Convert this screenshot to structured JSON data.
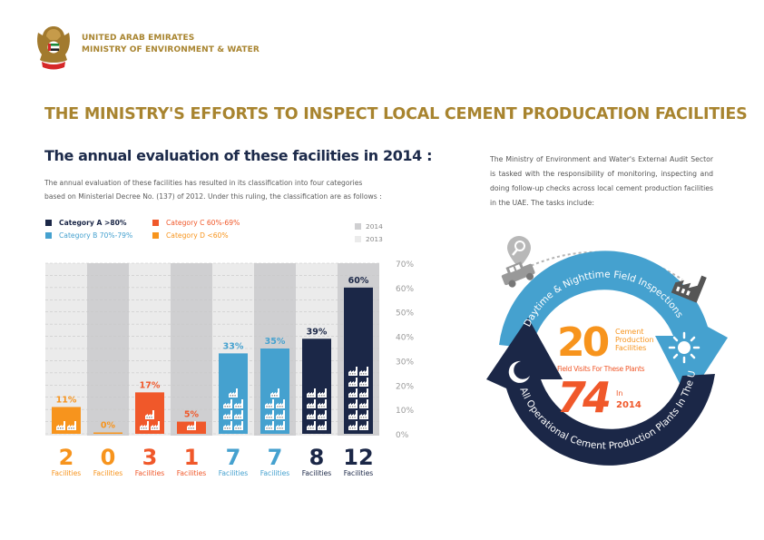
{
  "header": {
    "org_line1": "UNITED ARAB EMIRATES",
    "org_line2": "MINISTRY OF ENVIRONMENT & WATER",
    "logo_icon": "uae-emblem-falcon-icon"
  },
  "title": "THE MINISTRY'S EFFORTS TO INSPECT LOCAL CEMENT PRODUCATION FACILITIES",
  "left": {
    "subtitle": "The annual evaluation of these facilities in 2014 :",
    "description_line1": "The annual evaluation of these facilities has resulted in its classification into four categories",
    "description_line2": "based on Ministerial Decree No. (137) of 2012. Under this ruling, the classification are as follows :"
  },
  "legend": {
    "categories": [
      {
        "label": "Category A  >80%",
        "color": "#1b2747"
      },
      {
        "label": "Category B  70%-79%",
        "color": "#45a1cf"
      },
      {
        "label": "Category C  60%-69%",
        "color": "#f0582a"
      },
      {
        "label": "Category D  <60%",
        "color": "#f7941d"
      }
    ],
    "years": [
      {
        "label": "2014",
        "color": "#cfcfd1"
      },
      {
        "label": "2013",
        "color": "#ebebeb"
      }
    ]
  },
  "chart_data": {
    "type": "bar",
    "title": "The annual evaluation of these facilities in 2014",
    "ylabel": "",
    "xlabel": "",
    "ylim": [
      0,
      70
    ],
    "yticks": [
      "0%",
      "10%",
      "20%",
      "30%",
      "40%",
      "50%",
      "60%",
      "70%"
    ],
    "grid": true,
    "legend_position": "top",
    "bars": [
      {
        "year": "2013",
        "category": "D",
        "value": 11,
        "label": "11%",
        "facilities": 2
      },
      {
        "year": "2014",
        "category": "D",
        "value": 0,
        "label": "0%",
        "facilities": 0
      },
      {
        "year": "2013",
        "category": "C",
        "value": 17,
        "label": "17%",
        "facilities": 3
      },
      {
        "year": "2014",
        "category": "C",
        "value": 5,
        "label": "5%",
        "facilities": 1
      },
      {
        "year": "2013",
        "category": "B",
        "value": 33,
        "label": "33%",
        "facilities": 7
      },
      {
        "year": "2014",
        "category": "B",
        "value": 35,
        "label": "35%",
        "facilities": 7
      },
      {
        "year": "2013",
        "category": "A",
        "value": 39,
        "label": "39%",
        "facilities": 8
      },
      {
        "year": "2014",
        "category": "A",
        "value": 60,
        "label": "60%",
        "facilities": 12
      }
    ],
    "facilities_label": "Facilities"
  },
  "right": {
    "description": "The Ministry of Environment and Water's External Audit Sector is tasked with the responsibility of monitoring, inspecting and doing follow-up checks across local cement production facilities in the UAE. The tasks include:",
    "cycle": {
      "top_arc_text": "Daytime & Nighttime Field Inspections",
      "bottom_arc_text": "All Operational Cement Production Plants In The UAE",
      "facilities_number": "20",
      "facilities_line1": "Cement",
      "facilities_line2": "Production",
      "facilities_line3": "Facilities",
      "visits_label": "Field Visits For These Plants",
      "visits_number": "74",
      "visits_in": "In",
      "visits_year": "2014",
      "colors": {
        "top_arc": "#45a1cf",
        "bottom_arc": "#1b2747",
        "number_20": "#f7941d",
        "number_74": "#f0582a"
      },
      "icons": [
        "location-search-pin-icon",
        "jeep-icon",
        "factory-icon",
        "sun-icon",
        "moon-icon"
      ]
    }
  }
}
